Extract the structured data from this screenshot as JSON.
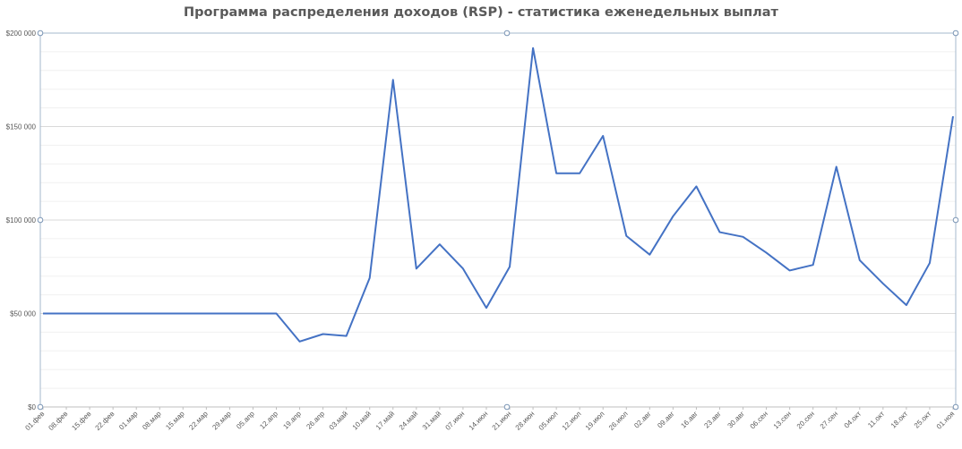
{
  "chart_data": {
    "type": "line",
    "title": "Программа распределения доходов (RSP) - статистика еженедельных выплат",
    "xlabel": "",
    "ylabel": "",
    "ylim": [
      0,
      200000
    ],
    "y_ticks": [
      {
        "value": 0,
        "label": "$0"
      },
      {
        "value": 50000,
        "label": "$50 000"
      },
      {
        "value": 100000,
        "label": "$100 000"
      },
      {
        "value": 150000,
        "label": "$150 000"
      },
      {
        "value": 200000,
        "label": "$200 000"
      }
    ],
    "grid": true,
    "legend": "none",
    "line_color": "#4472C4",
    "categories": [
      "01.фев",
      "08.фев",
      "15.фев",
      "22.фев",
      "01.мар",
      "08.мар",
      "15.мар",
      "22.мар",
      "29.мар",
      "05.апр",
      "12.апр",
      "19.апр",
      "26.апр",
      "03.май",
      "10.май",
      "17.май",
      "24.май",
      "31.май",
      "07.июн",
      "14.июн",
      "21.июн",
      "28.июн",
      "05.июл",
      "12.июл",
      "19.июл",
      "26.июл",
      "02.авг",
      "09.авг",
      "16.авг",
      "23.авг",
      "30.авг",
      "06.сен",
      "13.сен",
      "20.сен",
      "27.сен",
      "04.окт",
      "11.окт",
      "18.окт",
      "25.окт",
      "01.ноя"
    ],
    "series": [
      {
        "values": [
          50000,
          50000,
          50000,
          50000,
          50000,
          50000,
          50000,
          50000,
          50000,
          50000,
          50000,
          35000,
          39000,
          38000,
          69000,
          175000,
          74000,
          87000,
          74000,
          53000,
          75000,
          192000,
          125000,
          125000,
          145000,
          91500,
          81500,
          102000,
          118000,
          93500,
          91000,
          82500,
          73000,
          76000,
          128500,
          78500,
          66000,
          54500,
          77000,
          155500
        ]
      }
    ]
  }
}
